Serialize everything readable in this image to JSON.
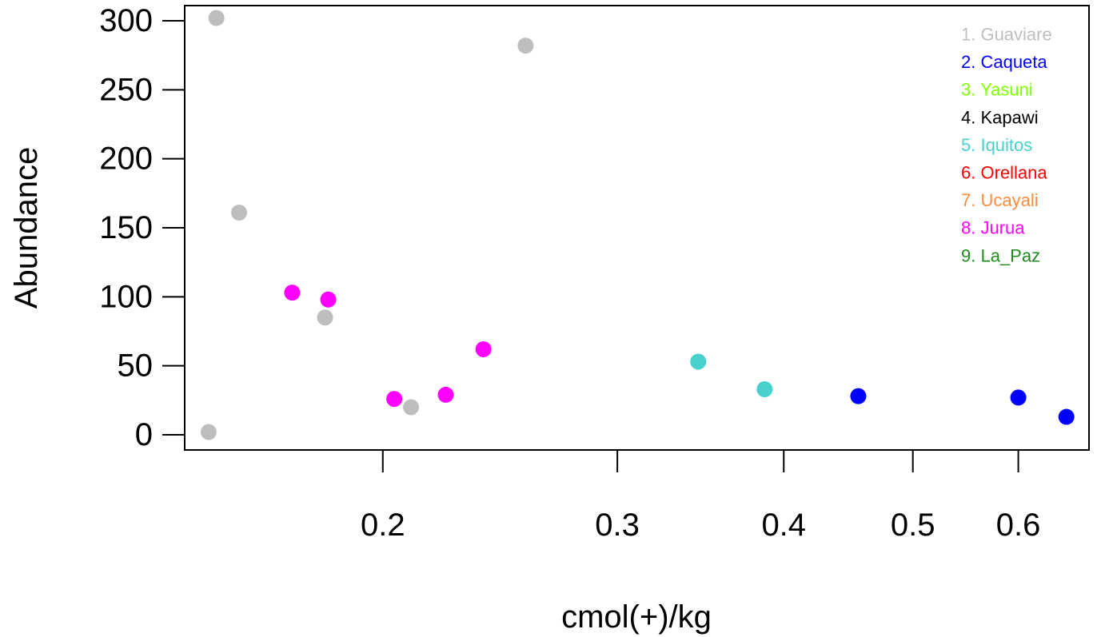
{
  "chart_data": {
    "type": "scatter",
    "xlabel": "cmol(+)/kg",
    "ylabel": "Abundance",
    "x_scale": "log",
    "xlim": [
      0.142,
      0.678
    ],
    "ylim": [
      -11,
      311
    ],
    "x_ticks": [
      0.2,
      0.3,
      0.4,
      0.5,
      0.6
    ],
    "x_tick_labels": [
      "0.2",
      "0.3",
      "0.4",
      "0.5",
      "0.6"
    ],
    "y_ticks": [
      0,
      50,
      100,
      150,
      200,
      250,
      300
    ],
    "y_tick_labels": [
      "0",
      "50",
      "100",
      "150",
      "200",
      "250",
      "300"
    ],
    "grid": false,
    "legend_position": "top-right",
    "legend": [
      {
        "label": "1. Guaviare",
        "color": "#bebebe"
      },
      {
        "label": "2. Caqueta",
        "color": "#0000ff"
      },
      {
        "label": "3. Yasuni",
        "color": "#7fff00"
      },
      {
        "label": "4. Kapawi",
        "color": "#000000"
      },
      {
        "label": "5. Iquitos",
        "color": "#48d1cc"
      },
      {
        "label": "6. Orellana",
        "color": "#ff0000"
      },
      {
        "label": "7. Ucayali",
        "color": "#ff8c3a"
      },
      {
        "label": "8. Jurua",
        "color": "#ff00ff"
      },
      {
        "label": "9. La_Paz",
        "color": "#228b22"
      }
    ],
    "series": [
      {
        "name": "1. Guaviare",
        "color": "#bebebe",
        "points": [
          [
            0.148,
            2
          ],
          [
            0.15,
            302
          ],
          [
            0.156,
            161
          ],
          [
            0.181,
            85
          ],
          [
            0.21,
            20
          ],
          [
            0.256,
            282
          ]
        ]
      },
      {
        "name": "2. Caqueta",
        "color": "#0000ff",
        "points": [
          [
            0.455,
            28
          ],
          [
            0.6,
            27
          ],
          [
            0.652,
            13
          ]
        ]
      },
      {
        "name": "5. Iquitos",
        "color": "#48d1cc",
        "points": [
          [
            0.345,
            53
          ],
          [
            0.387,
            33
          ]
        ]
      },
      {
        "name": "8. Jurua",
        "color": "#ff00ff",
        "points": [
          [
            0.171,
            103
          ],
          [
            0.182,
            98
          ],
          [
            0.204,
            26
          ],
          [
            0.223,
            29
          ],
          [
            0.238,
            62
          ]
        ]
      }
    ]
  }
}
